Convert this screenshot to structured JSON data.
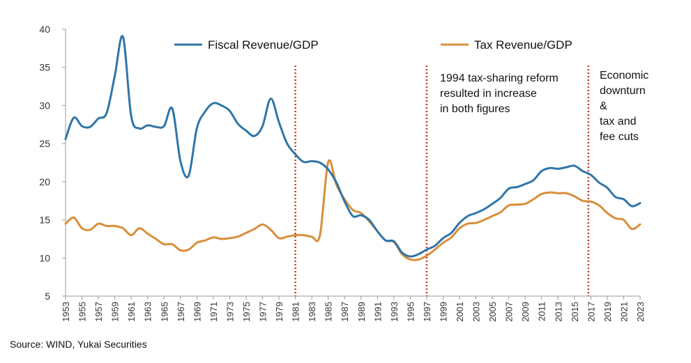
{
  "chart_data": {
    "type": "line",
    "title": "",
    "xlabel": "",
    "ylabel": "",
    "ylim": [
      5,
      40
    ],
    "yticks": [
      5,
      10,
      15,
      20,
      25,
      30,
      35,
      40
    ],
    "xlim": [
      1953,
      2023
    ],
    "xtick_labels": [
      "1953",
      "1955",
      "1957",
      "1959",
      "1961",
      "1963",
      "1965",
      "1967",
      "1969",
      "1971",
      "1973",
      "1975",
      "1977",
      "1979",
      "1981",
      "1983",
      "1985",
      "1987",
      "1989",
      "1991",
      "1993",
      "1995",
      "1997",
      "1999",
      "2001",
      "2003",
      "2005",
      "2007",
      "2009",
      "2011",
      "2013",
      "2015",
      "2017",
      "2019",
      "2021",
      "2023"
    ],
    "grid": false,
    "legend_placement": "top",
    "series": [
      {
        "name": "Fiscal Revenue/GDP",
        "color": "#2e75a8",
        "x": [
          1953,
          1954,
          1955,
          1956,
          1957,
          1958,
          1959,
          1960,
          1961,
          1962,
          1963,
          1964,
          1965,
          1966,
          1967,
          1968,
          1969,
          1970,
          1971,
          1972,
          1973,
          1974,
          1975,
          1976,
          1977,
          1978,
          1979,
          1980,
          1981,
          1982,
          1983,
          1984,
          1985,
          1986,
          1987,
          1988,
          1989,
          1990,
          1991,
          1992,
          1993,
          1994,
          1995,
          1996,
          1997,
          1998,
          1999,
          2000,
          2001,
          2002,
          2003,
          2004,
          2005,
          2006,
          2007,
          2008,
          2009,
          2010,
          2011,
          2012,
          2013,
          2014,
          2015,
          2016,
          2017,
          2018,
          2019,
          2020,
          2021,
          2022,
          2023
        ],
        "values": [
          25.6,
          28.4,
          27.3,
          27.2,
          28.3,
          29.0,
          33.9,
          39.0,
          28.6,
          27.0,
          27.4,
          27.2,
          27.3,
          29.6,
          22.7,
          20.8,
          27.0,
          29.2,
          30.3,
          30.0,
          29.3,
          27.6,
          26.7,
          26.0,
          27.3,
          30.9,
          27.8,
          25.0,
          23.6,
          22.6,
          22.7,
          22.5,
          21.6,
          19.9,
          17.4,
          15.5,
          15.6,
          15.0,
          13.5,
          12.3,
          12.2,
          10.7,
          10.2,
          10.5,
          11.1,
          11.6,
          12.6,
          13.3,
          14.6,
          15.5,
          15.9,
          16.4,
          17.1,
          17.9,
          19.1,
          19.3,
          19.7,
          20.2,
          21.4,
          21.8,
          21.7,
          21.9,
          22.1,
          21.4,
          20.9,
          19.9,
          19.2,
          18.0,
          17.7,
          16.8,
          17.2
        ]
      },
      {
        "name": "Tax Revenue/GDP",
        "color": "#d98e3a",
        "x": [
          1953,
          1954,
          1955,
          1956,
          1957,
          1958,
          1959,
          1960,
          1961,
          1962,
          1963,
          1964,
          1965,
          1966,
          1967,
          1968,
          1969,
          1970,
          1971,
          1972,
          1973,
          1974,
          1975,
          1976,
          1977,
          1978,
          1979,
          1980,
          1981,
          1982,
          1983,
          1984,
          1985,
          1986,
          1987,
          1988,
          1989,
          1990,
          1991,
          1992,
          1993,
          1994,
          1995,
          1996,
          1997,
          1998,
          1999,
          2000,
          2001,
          2002,
          2003,
          2004,
          2005,
          2006,
          2007,
          2008,
          2009,
          2010,
          2011,
          2012,
          2013,
          2014,
          2015,
          2016,
          2017,
          2018,
          2019,
          2020,
          2021,
          2022,
          2023
        ],
        "values": [
          14.5,
          15.3,
          13.9,
          13.7,
          14.5,
          14.2,
          14.2,
          13.9,
          13.0,
          13.9,
          13.2,
          12.5,
          11.8,
          11.8,
          11.0,
          11.1,
          12.0,
          12.3,
          12.7,
          12.5,
          12.6,
          12.8,
          13.3,
          13.8,
          14.4,
          13.7,
          12.6,
          12.8,
          13.0,
          13.0,
          12.8,
          13.0,
          22.6,
          19.6,
          17.7,
          16.3,
          15.9,
          14.8,
          13.5,
          12.3,
          12.1,
          10.5,
          9.8,
          9.8,
          10.3,
          11.1,
          12.0,
          12.7,
          13.9,
          14.5,
          14.6,
          15.0,
          15.5,
          16.0,
          16.9,
          17.0,
          17.1,
          17.7,
          18.4,
          18.6,
          18.5,
          18.5,
          18.1,
          17.5,
          17.4,
          16.9,
          15.9,
          15.2,
          15.0,
          13.8,
          14.4
        ]
      }
    ],
    "reference_lines": [
      {
        "x": 1981,
        "color": "#c0392b"
      },
      {
        "x": 1997,
        "color": "#c0392b"
      },
      {
        "x": 2016.7,
        "color": "#c0392b"
      }
    ],
    "annotations": [
      {
        "id": "reform",
        "lines": [
          "1994 tax-sharing reform",
          "resulted in increase",
          "in both figures"
        ]
      },
      {
        "id": "downturn",
        "lines": [
          "Economic",
          "downturn",
          "&",
          "tax and",
          "fee cuts"
        ]
      }
    ],
    "source": "Source: WIND, Yukai Securities"
  }
}
